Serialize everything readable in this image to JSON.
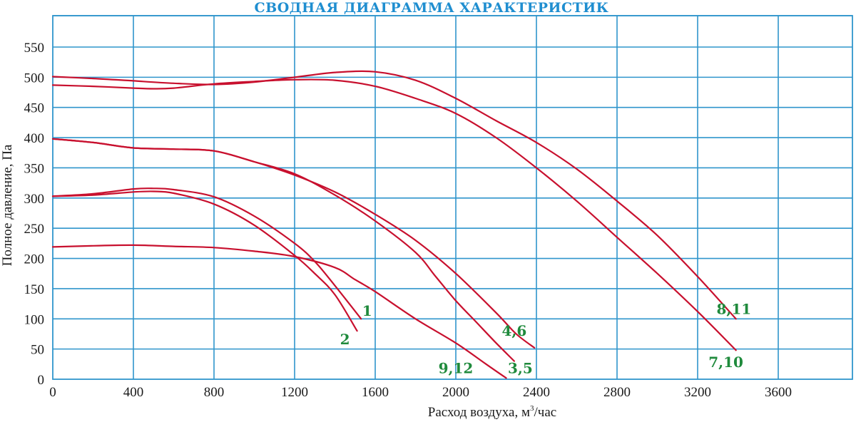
{
  "chart_data": {
    "type": "line",
    "title": "СВОДНАЯ ДИАГРАММА ХАРАКТЕРИСТИК",
    "xlabel_prefix": "Расход воздуха, м",
    "xlabel_sup": "3",
    "xlabel_suffix": "/час",
    "ylabel": "Полное давление, Па",
    "xlim": [
      0,
      4000
    ],
    "ylim": [
      0,
      600
    ],
    "x_ticks": [
      "0",
      "400",
      "800",
      "1200",
      "1600",
      "2000",
      "2400",
      "2800",
      "3200",
      "3600"
    ],
    "y_ticks": [
      "0",
      "50",
      "100",
      "150",
      "200",
      "250",
      "300",
      "350",
      "400",
      "450",
      "500",
      "550"
    ],
    "grid": true,
    "colors": {
      "curve": "#c8102e",
      "grid": "#2f95cc",
      "label": "#1f8a3c",
      "title": "#1f8ed0"
    },
    "series": [
      {
        "name": "1",
        "points": [
          [
            0,
            303
          ],
          [
            200,
            307
          ],
          [
            400,
            315
          ],
          [
            500,
            316
          ],
          [
            600,
            314
          ],
          [
            800,
            302
          ],
          [
            1000,
            270
          ],
          [
            1200,
            225
          ],
          [
            1300,
            195
          ],
          [
            1400,
            155
          ],
          [
            1530,
            100
          ]
        ]
      },
      {
        "name": "2",
        "points": [
          [
            0,
            303
          ],
          [
            200,
            305
          ],
          [
            400,
            310
          ],
          [
            500,
            311
          ],
          [
            600,
            308
          ],
          [
            800,
            290
          ],
          [
            1000,
            255
          ],
          [
            1200,
            205
          ],
          [
            1300,
            175
          ],
          [
            1400,
            140
          ],
          [
            1510,
            80
          ]
        ]
      },
      {
        "name": "3,5",
        "points": [
          [
            0,
            398
          ],
          [
            200,
            392
          ],
          [
            400,
            383
          ],
          [
            600,
            381
          ],
          [
            800,
            378
          ],
          [
            1000,
            360
          ],
          [
            1200,
            340
          ],
          [
            1400,
            305
          ],
          [
            1600,
            262
          ],
          [
            1800,
            210
          ],
          [
            1900,
            170
          ],
          [
            2000,
            130
          ],
          [
            2100,
            95
          ],
          [
            2200,
            60
          ],
          [
            2290,
            30
          ]
        ]
      },
      {
        "name": "4,6",
        "points": [
          [
            0,
            398
          ],
          [
            200,
            392
          ],
          [
            400,
            383
          ],
          [
            600,
            381
          ],
          [
            800,
            378
          ],
          [
            1000,
            360
          ],
          [
            1200,
            338
          ],
          [
            1400,
            310
          ],
          [
            1600,
            273
          ],
          [
            1800,
            230
          ],
          [
            2000,
            175
          ],
          [
            2200,
            110
          ],
          [
            2300,
            75
          ],
          [
            2390,
            52
          ]
        ]
      },
      {
        "name": "9,12",
        "points": [
          [
            0,
            219
          ],
          [
            200,
            221
          ],
          [
            400,
            222
          ],
          [
            600,
            220
          ],
          [
            800,
            218
          ],
          [
            1000,
            212
          ],
          [
            1200,
            203
          ],
          [
            1400,
            185
          ],
          [
            1500,
            165
          ],
          [
            1600,
            145
          ],
          [
            1800,
            100
          ],
          [
            2000,
            60
          ],
          [
            2150,
            25
          ],
          [
            2250,
            2
          ]
        ]
      },
      {
        "name": "7,10",
        "points": [
          [
            0,
            487
          ],
          [
            200,
            485
          ],
          [
            400,
            482
          ],
          [
            500,
            481
          ],
          [
            600,
            482
          ],
          [
            800,
            489
          ],
          [
            1000,
            493
          ],
          [
            1200,
            496
          ],
          [
            1400,
            495
          ],
          [
            1600,
            485
          ],
          [
            1800,
            465
          ],
          [
            2000,
            440
          ],
          [
            2200,
            400
          ],
          [
            2400,
            350
          ],
          [
            2600,
            295
          ],
          [
            2800,
            235
          ],
          [
            3000,
            175
          ],
          [
            3200,
            112
          ],
          [
            3390,
            48
          ]
        ]
      },
      {
        "name": "8,11",
        "points": [
          [
            0,
            501
          ],
          [
            200,
            498
          ],
          [
            400,
            494
          ],
          [
            600,
            490
          ],
          [
            800,
            488
          ],
          [
            1000,
            492
          ],
          [
            1200,
            500
          ],
          [
            1400,
            508
          ],
          [
            1600,
            509
          ],
          [
            1800,
            495
          ],
          [
            2000,
            465
          ],
          [
            2200,
            428
          ],
          [
            2400,
            392
          ],
          [
            2600,
            348
          ],
          [
            2800,
            295
          ],
          [
            3000,
            238
          ],
          [
            3200,
            170
          ],
          [
            3390,
            100
          ]
        ]
      }
    ],
    "labels": [
      {
        "text": "1",
        "x": 1560,
        "y": 105
      },
      {
        "text": "2",
        "x": 1450,
        "y": 58
      },
      {
        "text": "4,6",
        "x": 2290,
        "y": 72
      },
      {
        "text": "3,5",
        "x": 2320,
        "y": 10
      },
      {
        "text": "9,12",
        "x": 2000,
        "y": 10
      },
      {
        "text": "8,11",
        "x": 3380,
        "y": 108
      },
      {
        "text": "7,10",
        "x": 3340,
        "y": 20
      }
    ]
  }
}
